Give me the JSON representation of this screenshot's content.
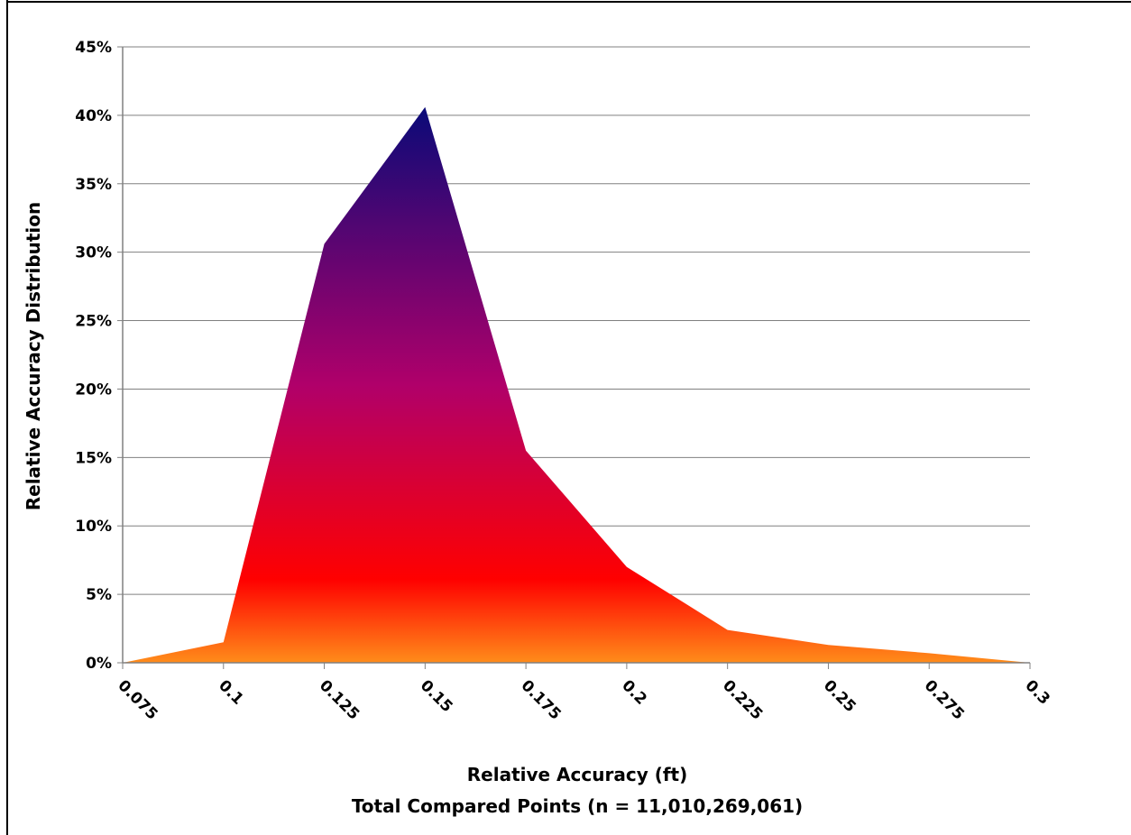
{
  "chart_data": {
    "type": "area",
    "title": "",
    "xlabel": "Relative Accuracy (ft)",
    "xlabel_line2": "Total Compared Points (n = 11,010,269,061)",
    "ylabel": "Relative Accuracy Distribution",
    "categories": [
      "0.075",
      "0.1",
      "0.125",
      "0.15",
      "0.175",
      "0.2",
      "0.225",
      "0.25",
      "0.275",
      "0.3"
    ],
    "values": [
      0.0,
      1.5,
      30.6,
      40.6,
      15.5,
      7.0,
      2.4,
      1.3,
      0.7,
      0.0
    ],
    "y_ticks": [
      "0%",
      "5%",
      "10%",
      "15%",
      "20%",
      "25%",
      "30%",
      "35%",
      "40%",
      "45%"
    ],
    "ylim": [
      0,
      45
    ],
    "grid": true,
    "legend": "none",
    "colors": {
      "gradient_top": "#0a0a78",
      "gradient_mid": "#b0006a",
      "gradient_red": "#ff0000",
      "gradient_bottom": "#ff8c1a",
      "gridline": "#808080"
    }
  }
}
